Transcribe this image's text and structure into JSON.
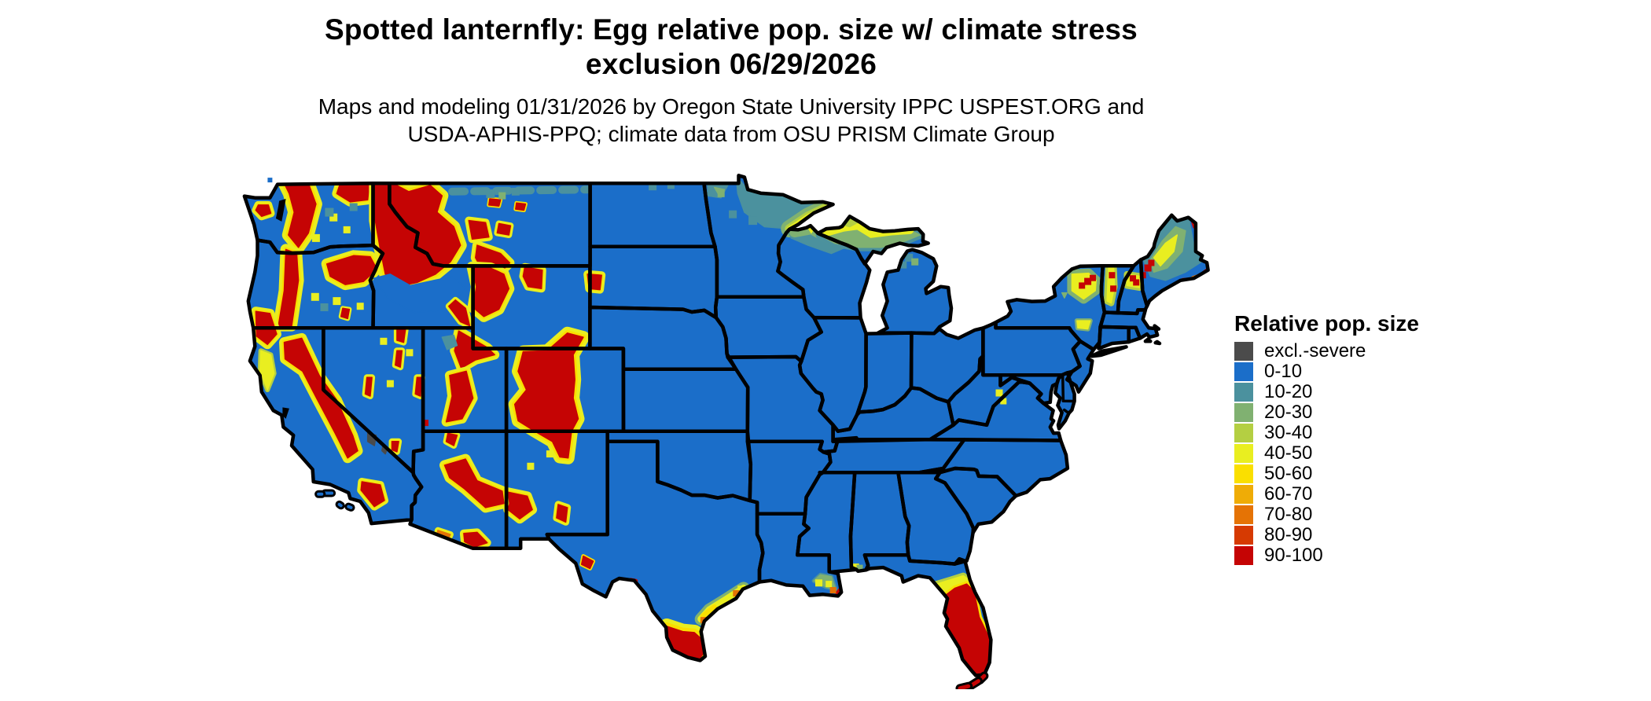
{
  "header": {
    "title_line1": "Spotted lanternfly: Egg relative pop. size w/ climate stress",
    "title_line2": "exclusion 06/29/2026",
    "subtitle_line1": "Maps and modeling 01/31/2026 by Oregon State University IPPC USPEST.ORG and",
    "subtitle_line2": "USDA-APHIS-PPQ; climate data from OSU PRISM Climate Group"
  },
  "legend": {
    "title": "Relative pop. size",
    "items": [
      {
        "label": "excl.-severe",
        "color": "#4b4b4b"
      },
      {
        "label": "0-10",
        "color": "#1b6ec9"
      },
      {
        "label": "10-20",
        "color": "#4b919e"
      },
      {
        "label": "20-30",
        "color": "#80b171"
      },
      {
        "label": "30-40",
        "color": "#b4cf42"
      },
      {
        "label": "40-50",
        "color": "#e9ee20"
      },
      {
        "label": "50-60",
        "color": "#fadf00"
      },
      {
        "label": "60-70",
        "color": "#efac06"
      },
      {
        "label": "70-80",
        "color": "#e57305"
      },
      {
        "label": "80-90",
        "color": "#d63a02"
      },
      {
        "label": "90-100",
        "color": "#c50404"
      }
    ]
  },
  "palette": {
    "excl": "#4b4b4b",
    "b": "#1b6ec9",
    "t": "#4b919e",
    "g": "#80b171",
    "yg": "#b4cf42",
    "y": "#e9ee20",
    "gold": "#fadf00",
    "amber": "#efac06",
    "o": "#e57305",
    "ro": "#d63a02",
    "r": "#c50404",
    "border": "#000000",
    "background": "#ffffff"
  }
}
